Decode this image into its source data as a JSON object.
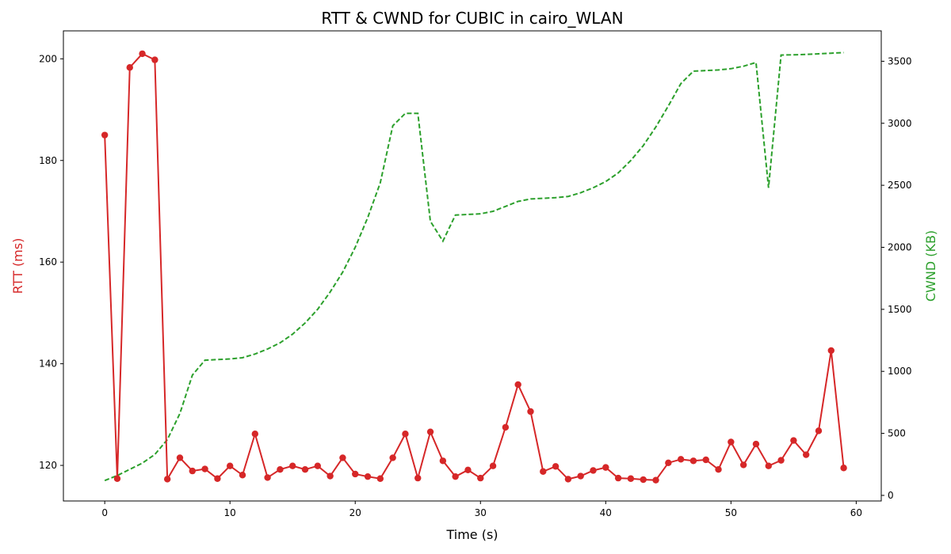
{
  "chart_data": {
    "type": "line",
    "title": "RTT & CWND for CUBIC in cairo_WLAN",
    "xlabel": "Time (s)",
    "ylabel_left": "RTT (ms)",
    "ylabel_right": "CWND (KB)",
    "xlim": [
      -3.3,
      62
    ],
    "ylim_left": [
      113.0,
      205.5
    ],
    "ylim_right": [
      -45,
      3745
    ],
    "x_ticks": [
      0,
      10,
      20,
      30,
      40,
      50,
      60
    ],
    "y_left_ticks": [
      120,
      140,
      160,
      180,
      200
    ],
    "y_right_ticks": [
      0,
      500,
      1000,
      1500,
      2000,
      2500,
      3000,
      3500
    ],
    "grid": false,
    "legend": "none",
    "colors": {
      "rtt": "#d62728",
      "cwnd": "#2ca02c"
    },
    "x": [
      0,
      1,
      2,
      3,
      4,
      5,
      6,
      7,
      8,
      9,
      10,
      11,
      12,
      13,
      14,
      15,
      16,
      17,
      18,
      19,
      20,
      21,
      22,
      23,
      24,
      25,
      26,
      27,
      28,
      29,
      30,
      31,
      32,
      33,
      34,
      35,
      36,
      37,
      38,
      39,
      40,
      41,
      42,
      43,
      44,
      45,
      46,
      47,
      48,
      49,
      50,
      51,
      52,
      53,
      54,
      55,
      56,
      57,
      58,
      59
    ],
    "series": [
      {
        "axis": "left",
        "style": "solid-markers",
        "values": [
          185.0,
          117.4,
          198.3,
          201.0,
          199.8,
          117.3,
          121.5,
          118.9,
          119.3,
          117.4,
          119.9,
          118.1,
          126.2,
          117.6,
          119.2,
          119.9,
          119.2,
          119.9,
          117.9,
          121.5,
          118.3,
          117.8,
          117.4,
          121.5,
          126.2,
          117.5,
          126.6,
          120.9,
          117.8,
          119.1,
          117.5,
          119.9,
          127.5,
          135.9,
          130.6,
          118.8,
          119.8,
          117.3,
          117.9,
          119.0,
          119.6,
          117.5,
          117.4,
          117.2,
          117.1,
          120.5,
          121.2,
          120.9,
          121.1,
          119.2,
          124.6,
          120.1,
          124.2,
          119.9,
          121.0,
          124.9,
          122.1,
          126.8,
          142.6,
          119.5
        ]
      },
      {
        "axis": "right",
        "style": "dashed",
        "values": [
          120,
          160,
          210,
          260,
          330,
          450,
          660,
          970,
          1090,
          1095,
          1100,
          1110,
          1140,
          1180,
          1230,
          1300,
          1390,
          1500,
          1640,
          1800,
          2000,
          2240,
          2520,
          2980,
          3080,
          3080,
          2210,
          2050,
          2260,
          2265,
          2270,
          2290,
          2330,
          2370,
          2390,
          2395,
          2400,
          2410,
          2440,
          2480,
          2530,
          2600,
          2700,
          2820,
          2970,
          3140,
          3320,
          3420,
          3425,
          3430,
          3440,
          3460,
          3490,
          2480,
          3550,
          3552,
          3555,
          3560,
          3565,
          3570
        ]
      }
    ]
  }
}
